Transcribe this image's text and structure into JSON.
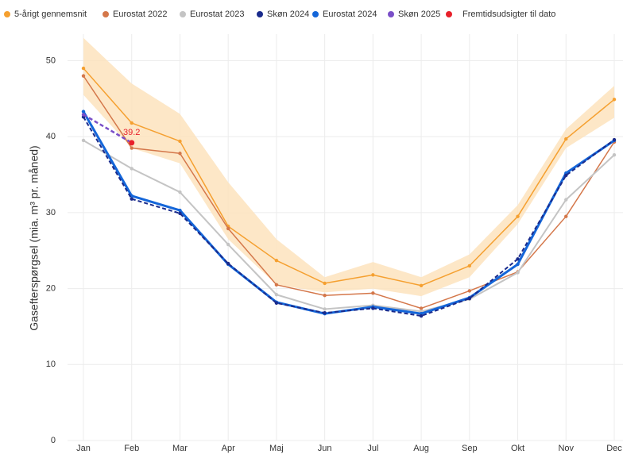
{
  "chart_data": {
    "type": "line",
    "y_label": "Gasefterspørgsel (mia. m³ pr. måned)",
    "categories": [
      "Jan",
      "Feb",
      "Mar",
      "Apr",
      "Maj",
      "Jun",
      "Jul",
      "Aug",
      "Sep",
      "Okt",
      "Nov",
      "Dec"
    ],
    "ylim": [
      0,
      53.5
    ],
    "yticks": [
      0,
      10,
      20,
      30,
      40,
      50
    ],
    "grid": true,
    "legend": "top",
    "band": {
      "color": "#fde3bd",
      "upper": [
        53,
        47,
        43,
        34,
        26.5,
        21.5,
        23.5,
        21.5,
        24.5,
        31,
        41,
        46.7
      ],
      "lower": [
        45.5,
        38.5,
        36.5,
        26.5,
        20.5,
        19.5,
        20,
        19,
        21.5,
        28.5,
        38.5,
        42.5
      ]
    },
    "series": [
      {
        "name": "5-årigt gennemsnit",
        "color": "#f5a030",
        "line_width": 1.5,
        "dashed": false,
        "marker_only": false,
        "values": [
          49,
          41.8,
          39.4,
          28.2,
          23.7,
          20.7,
          21.8,
          20.4,
          23,
          29.5,
          39.7,
          44.9
        ]
      },
      {
        "name": "Eurostat 2022",
        "color": "#d4774a",
        "line_width": 1.5,
        "dashed": false,
        "marker_only": false,
        "values": [
          48,
          38.5,
          37.8,
          27.9,
          20.5,
          19.1,
          19.4,
          17.4,
          19.7,
          22.2,
          29.5,
          39.3
        ]
      },
      {
        "name": "Eurostat 2023",
        "color": "#c4c4c4",
        "line_width": 2,
        "dashed": false,
        "marker_only": false,
        "values": [
          39.5,
          35.8,
          32.7,
          25.8,
          19.2,
          17.3,
          17.8,
          17.0,
          18.6,
          22.1,
          31.7,
          37.6
        ]
      },
      {
        "name": "Skøn 2024",
        "color": "#1a2b8c",
        "line_width": 2,
        "dashed": true,
        "marker_only": false,
        "values": [
          42.6,
          31.8,
          29.9,
          23.3,
          18.1,
          16.8,
          17.4,
          16.4,
          18.7,
          23.9,
          34.9,
          39.6
        ]
      },
      {
        "name": "Eurostat 2024",
        "color": "#1466d9",
        "line_width": 3,
        "dashed": false,
        "marker_only": false,
        "values": [
          43.3,
          32.2,
          30.3,
          23.2,
          18.2,
          16.7,
          17.6,
          16.7,
          18.8,
          23.2,
          35.2,
          39.5
        ]
      },
      {
        "name": "Skøn 2025",
        "color": "#7a4fc8",
        "line_width": 2.5,
        "dashed": true,
        "marker_only": false,
        "values": [
          42.9,
          39.2,
          null,
          null,
          null,
          null,
          null,
          null,
          null,
          null,
          null,
          null
        ]
      },
      {
        "name": "Fremtidsudsigter til dato",
        "color": "#e8202a",
        "line_width": 0,
        "dashed": false,
        "marker_only": true,
        "values": [
          null,
          39.2,
          null,
          null,
          null,
          null,
          null,
          null,
          null,
          null,
          null,
          null
        ]
      }
    ]
  }
}
